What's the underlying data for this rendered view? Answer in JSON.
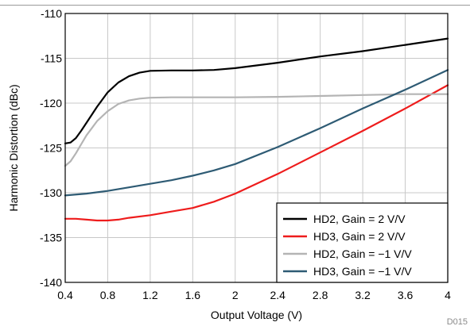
{
  "chart_data": {
    "type": "line",
    "title": "",
    "xlabel": "Output Voltage (V)",
    "ylabel": "Harmonic Distortion (dBc)",
    "xlim": [
      0.4,
      4
    ],
    "ylim": [
      -140,
      -110
    ],
    "x_ticks": [
      "0.4",
      "0.8",
      "1.2",
      "1.6",
      "2",
      "2.4",
      "2.8",
      "3.2",
      "3.6",
      "4"
    ],
    "y_ticks": [
      "-110",
      "-115",
      "-120",
      "-125",
      "-130",
      "-135",
      "-140"
    ],
    "grid": true,
    "legend_position": "bottom-right",
    "figure_id": "D015",
    "series": [
      {
        "name": "HD2, Gain = 2 V/V",
        "color": "#000000",
        "x": [
          0.4,
          0.45,
          0.5,
          0.55,
          0.6,
          0.7,
          0.8,
          0.9,
          1.0,
          1.1,
          1.2,
          1.4,
          1.6,
          1.8,
          2.0,
          2.4,
          2.8,
          3.2,
          3.6,
          4.0
        ],
        "y": [
          -124.5,
          -124.4,
          -123.9,
          -123.1,
          -122.2,
          -120.4,
          -118.8,
          -117.7,
          -117.0,
          -116.6,
          -116.4,
          -116.35,
          -116.35,
          -116.3,
          -116.1,
          -115.5,
          -114.8,
          -114.2,
          -113.5,
          -112.8
        ]
      },
      {
        "name": "HD3, Gain = 2 V/V",
        "color": "#ee1c1c",
        "x": [
          0.4,
          0.5,
          0.6,
          0.7,
          0.8,
          0.9,
          1.0,
          1.2,
          1.4,
          1.6,
          1.8,
          2.0,
          2.4,
          2.8,
          3.2,
          3.6,
          4.0
        ],
        "y": [
          -132.9,
          -132.9,
          -133.0,
          -133.1,
          -133.1,
          -133.0,
          -132.8,
          -132.5,
          -132.1,
          -131.7,
          -131.0,
          -130.1,
          -127.9,
          -125.5,
          -123.1,
          -120.6,
          -118.0
        ]
      },
      {
        "name": "HD2, Gain = −1 V/V",
        "color": "#b4b4b4",
        "x": [
          0.4,
          0.45,
          0.5,
          0.55,
          0.6,
          0.7,
          0.8,
          0.9,
          1.0,
          1.1,
          1.2,
          1.4,
          1.6,
          2.0,
          2.4,
          2.8,
          3.2,
          3.6,
          4.0
        ],
        "y": [
          -127.0,
          -126.5,
          -125.6,
          -124.6,
          -123.6,
          -122.0,
          -120.9,
          -120.1,
          -119.7,
          -119.5,
          -119.4,
          -119.35,
          -119.35,
          -119.35,
          -119.3,
          -119.2,
          -119.1,
          -119.0,
          -119.0
        ]
      },
      {
        "name": "HD3, Gain = −1 V/V",
        "color": "#2e5b74",
        "x": [
          0.4,
          0.6,
          0.8,
          1.0,
          1.2,
          1.4,
          1.6,
          1.8,
          2.0,
          2.4,
          2.8,
          3.2,
          3.6,
          4.0
        ],
        "y": [
          -130.3,
          -130.1,
          -129.8,
          -129.4,
          -129.0,
          -128.6,
          -128.1,
          -127.5,
          -126.8,
          -124.9,
          -122.8,
          -120.6,
          -118.5,
          -116.3
        ]
      }
    ]
  }
}
